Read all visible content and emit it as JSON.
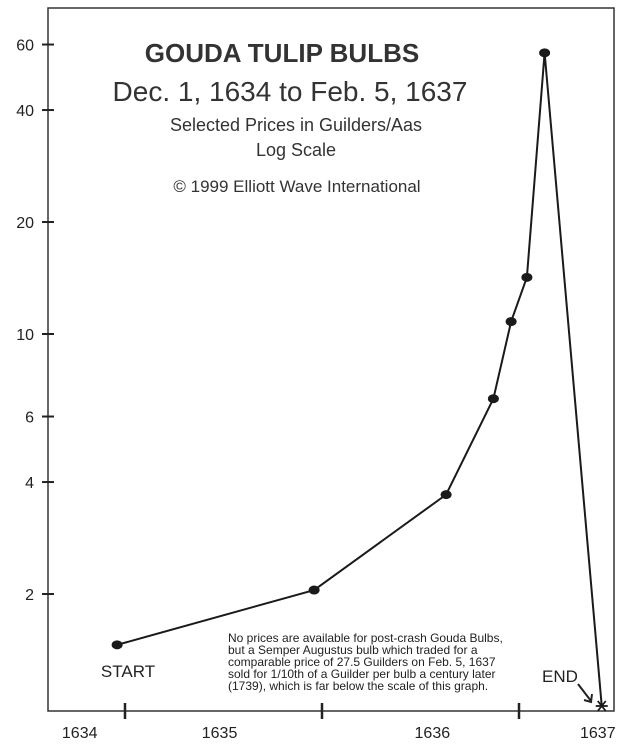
{
  "chart_data": {
    "type": "line",
    "title": "GOUDA TULIP BULBS",
    "subtitle": "Dec. 1, 1634 to Feb. 5, 1637",
    "subtitle2": "Selected Prices in Guilders/Aas",
    "scale_note": "Log Scale",
    "copyright": "© 1999 Elliott Wave International",
    "xlabel": "",
    "ylabel": "",
    "y_scale": "log",
    "ylim": [
      1,
      75
    ],
    "xlim": [
      1634.6,
      1637.5
    ],
    "grid": false,
    "y_ticks": [
      2,
      4,
      6,
      10,
      20,
      40,
      60
    ],
    "y_tick_labels": [
      "2",
      "4",
      "6",
      "10",
      "20",
      "40",
      "60"
    ],
    "x_ticks": [
      1635,
      1636,
      1637
    ],
    "x_tick_labels": [
      {
        "label": "1634",
        "at": 1634.77
      },
      {
        "label": "1635",
        "at": 1635.48
      },
      {
        "label": "1636",
        "at": 1636.56
      },
      {
        "label": "1637",
        "at": 1637.4
      }
    ],
    "series": [
      {
        "x": [
          1634.96,
          1635.96,
          1636.63,
          1636.87,
          1636.96,
          1637.04,
          1637.13,
          1637.42
        ],
        "y": [
          1.46,
          2.05,
          3.7,
          6.7,
          10.8,
          14.2,
          57,
          1.0
        ],
        "markers": [
          "dot",
          "dot",
          "dot",
          "dot",
          "dot",
          "dot",
          "dot",
          "star"
        ],
        "color": "#1a1a1a"
      }
    ],
    "annotations": {
      "start": "START",
      "end": "END",
      "note": [
        "No prices are available for post-crash Gouda Bulbs,",
        "but a Semper Augustus bulb which traded for a",
        "comparable price of 27.5 Guilders on Feb. 5, 1637",
        "sold for 1/10th of a Guilder per bulb a century later",
        "(1739), which is far below the scale of this graph."
      ]
    }
  }
}
